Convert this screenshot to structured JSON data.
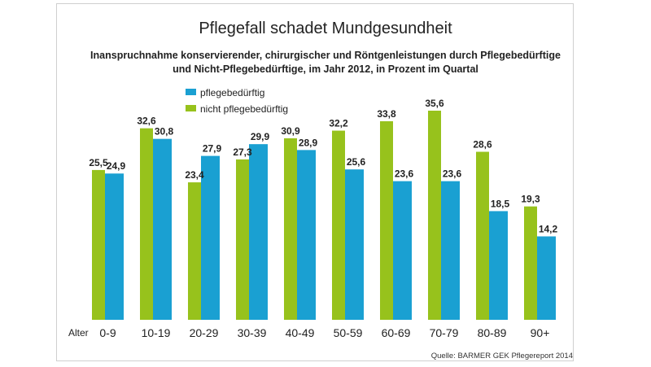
{
  "chart_data": {
    "type": "bar",
    "title": "Pflegefall schadet Mundgesundheit",
    "subtitle_lines": [
      "Inanspruchnahme konservierender, chirurgischer und Röntgenleistungen durch Pflegebedürftige",
      "und Nicht-Pflegebedürftige, im Jahr 2012, in Prozent im Quartal"
    ],
    "xlabel": "Alter",
    "ylabel": "",
    "ylim": [
      0,
      36
    ],
    "grid": false,
    "legend_position": "top-left",
    "categories": [
      "0-9",
      "10-19",
      "20-29",
      "30-39",
      "40-49",
      "50-59",
      "60-69",
      "70-79",
      "80-89",
      "90+"
    ],
    "series": [
      {
        "name": "nicht pflegebedürftig",
        "color": "#97c21c",
        "values": [
          25.5,
          32.6,
          23.4,
          27.3,
          30.9,
          32.2,
          33.8,
          35.6,
          28.6,
          19.3
        ]
      },
      {
        "name": "pflegebedürftig",
        "color": "#1aa0d2",
        "values": [
          24.9,
          30.8,
          27.9,
          29.9,
          28.9,
          25.6,
          23.6,
          23.6,
          18.5,
          14.2
        ]
      }
    ],
    "source": "Quelle: BARMER GEK Pflegereport 2014"
  }
}
